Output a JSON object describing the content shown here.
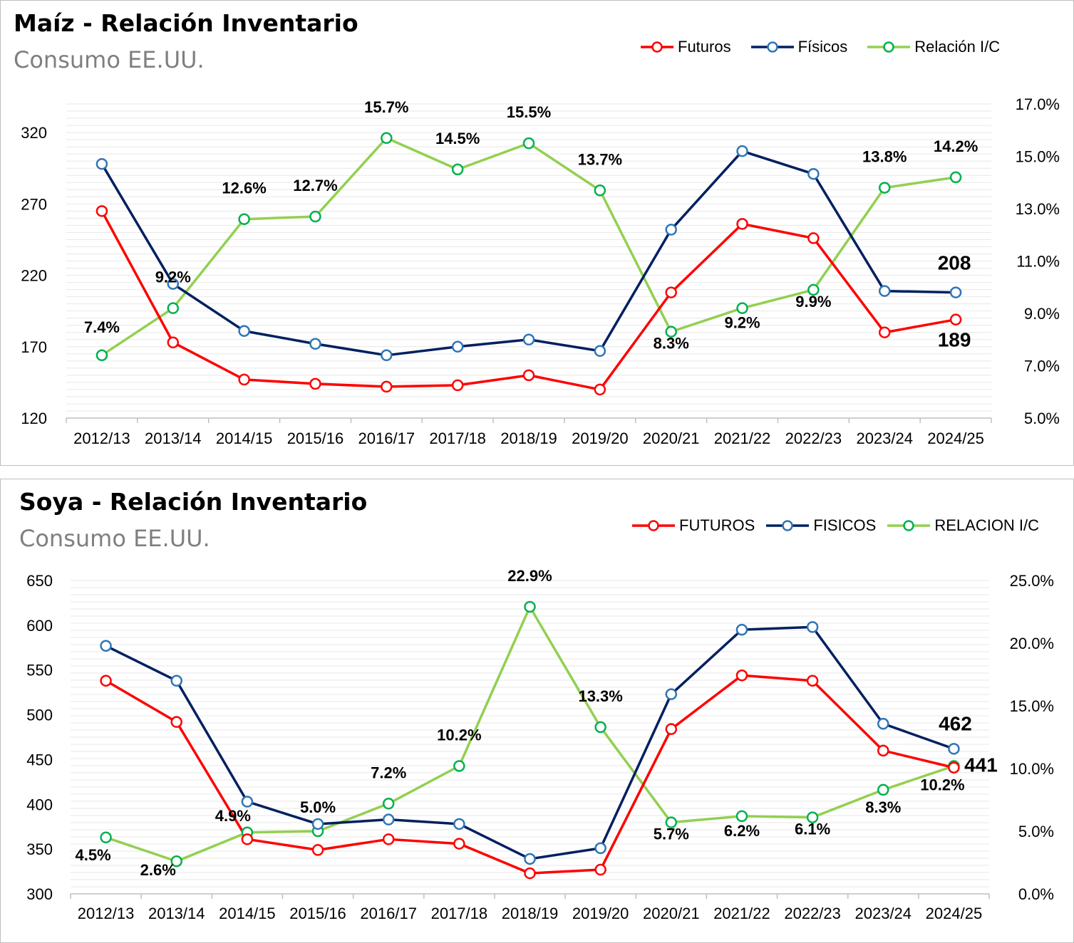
{
  "chart_data": [
    {
      "type": "line",
      "title": "Maíz - Relación Inventario",
      "subtitle": "Consumo EE.UU.",
      "categories": [
        "2012/13",
        "2013/14",
        "2014/15",
        "2015/16",
        "2016/17",
        "2017/18",
        "2018/19",
        "2019/20",
        "2020/21",
        "2021/22",
        "2022/23",
        "2023/24",
        "2024/25"
      ],
      "left_axis": {
        "ticks": [
          "120",
          "170",
          "220",
          "270",
          "320"
        ],
        "ylim": [
          120,
          340
        ]
      },
      "right_axis": {
        "ticks": [
          "5.0%",
          "7.0%",
          "9.0%",
          "11.0%",
          "13.0%",
          "15.0%",
          "17.0%"
        ],
        "ylim": [
          5,
          17
        ]
      },
      "legend_position": "top-right",
      "grid": true,
      "series": [
        {
          "name": "Futuros",
          "axis": "left",
          "color": "#ff0000",
          "values": [
            265,
            173,
            147,
            144,
            142,
            143,
            150,
            140,
            208,
            256,
            246,
            180,
            189
          ]
        },
        {
          "name": "Físicos",
          "axis": "left",
          "color": "#002060",
          "values": [
            298,
            214,
            181,
            172,
            164,
            170,
            175,
            167,
            252,
            307,
            291,
            209,
            208
          ]
        },
        {
          "name": "Relación I/C",
          "axis": "right",
          "color": "#92d050",
          "values": [
            7.4,
            9.2,
            12.6,
            12.7,
            15.7,
            14.5,
            15.5,
            13.7,
            8.3,
            9.2,
            9.9,
            13.8,
            14.2
          ],
          "labels": [
            "7.4%",
            "9.2%",
            "12.6%",
            "12.7%",
            "15.7%",
            "14.5%",
            "15.5%",
            "13.7%",
            "8.3%",
            "9.2%",
            "9.9%",
            "13.8%",
            "14.2%"
          ]
        }
      ],
      "end_labels": {
        "fisicos": "208",
        "futuros": "189"
      }
    },
    {
      "type": "line",
      "title": "Soya - Relación Inventario",
      "subtitle": "Consumo EE.UU.",
      "categories": [
        "2012/13",
        "2013/14",
        "2014/15",
        "2015/16",
        "2016/17",
        "2017/18",
        "2018/19",
        "2019/20",
        "2020/21",
        "2021/22",
        "2022/23",
        "2023/24",
        "2024/25"
      ],
      "left_axis": {
        "ticks": [
          "300",
          "350",
          "400",
          "450",
          "500",
          "550",
          "600",
          "650"
        ],
        "ylim": [
          300,
          650
        ]
      },
      "right_axis": {
        "ticks": [
          "0.0%",
          "5.0%",
          "10.0%",
          "15.0%",
          "20.0%",
          "25.0%"
        ],
        "ylim": [
          0,
          25
        ]
      },
      "legend_position": "top-right",
      "grid": true,
      "series": [
        {
          "name": "FUTUROS",
          "axis": "left",
          "color": "#ff0000",
          "values": [
            538,
            492,
            361,
            349,
            361,
            356,
            323,
            327,
            484,
            544,
            538,
            460,
            441
          ]
        },
        {
          "name": "FISICOS",
          "axis": "left",
          "color": "#002060",
          "values": [
            577,
            538,
            403,
            378,
            383,
            378,
            339,
            351,
            523,
            595,
            598,
            490,
            462
          ]
        },
        {
          "name": "RELACION I/C",
          "axis": "right",
          "color": "#92d050",
          "values": [
            4.5,
            2.6,
            4.9,
            5.0,
            7.2,
            10.2,
            22.9,
            13.3,
            5.7,
            6.2,
            6.1,
            8.3,
            10.2
          ],
          "labels": [
            "4.5%",
            "2.6%",
            "4.9%",
            "5.0%",
            "7.2%",
            "10.2%",
            "22.9%",
            "13.3%",
            "5.7%",
            "6.2%",
            "6.1%",
            "8.3%",
            "10.2%"
          ]
        }
      ],
      "end_labels": {
        "fisicos": "462",
        "futuros": "441"
      }
    }
  ]
}
